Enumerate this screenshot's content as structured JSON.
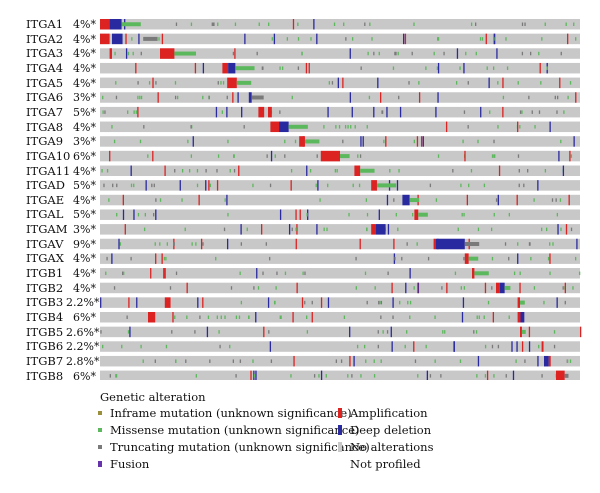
{
  "genes": [
    {
      "name": "ITGA1",
      "pct": "4%*"
    },
    {
      "name": "ITGA2",
      "pct": "4%*"
    },
    {
      "name": "ITGA3",
      "pct": "4%*"
    },
    {
      "name": "ITGA4",
      "pct": "4%*"
    },
    {
      "name": "ITGA5",
      "pct": "4%*"
    },
    {
      "name": "ITGA6",
      "pct": "3%*"
    },
    {
      "name": "ITGA7",
      "pct": "5%*"
    },
    {
      "name": "ITGA8",
      "pct": "4%*"
    },
    {
      "name": "ITGA9",
      "pct": "3%*"
    },
    {
      "name": "ITGA10",
      "pct": "6%*"
    },
    {
      "name": "ITGA11",
      "pct": "4%*"
    },
    {
      "name": "ITGAD",
      "pct": "5%*"
    },
    {
      "name": "ITGAE",
      "pct": "4%*"
    },
    {
      "name": "ITGAL",
      "pct": "5%*"
    },
    {
      "name": "ITGAM",
      "pct": "3%*"
    },
    {
      "name": "ITGAV",
      "pct": "9%*"
    },
    {
      "name": "ITGAX",
      "pct": "4%*"
    },
    {
      "name": "ITGB1",
      "pct": "4%*"
    },
    {
      "name": "ITGB2",
      "pct": "4%*"
    },
    {
      "name": "ITGB3",
      "pct": "2.2%*"
    },
    {
      "name": "ITGB4",
      "pct": "6%*"
    },
    {
      "name": "ITGB5",
      "pct": "2.6%*"
    },
    {
      "name": "ITGB6",
      "pct": "2.2%*"
    },
    {
      "name": "ITGB7",
      "pct": "2.8%*"
    },
    {
      "name": "ITGB8",
      "pct": "6%*"
    }
  ],
  "legend": {
    "title": "Genetic alteration",
    "items": [
      {
        "label": "Inframe mutation (unknown significance)",
        "color": "#9a8f3a"
      },
      {
        "label": "Missense mutation (unknown significance)",
        "color": "#5cb85c"
      },
      {
        "label": "Truncating mutation (unknown significance)",
        "color": "#7a7a7a"
      },
      {
        "label": "Fusion",
        "color": "#6633aa"
      },
      {
        "label": "Amplification",
        "color": "#dd2222"
      },
      {
        "label": "Deep deletion",
        "color": "#2a2aa0"
      },
      {
        "label": "No alterations",
        "color": "#c8c8c8"
      },
      {
        "label": "Not profiled",
        "color": "#ffffff"
      }
    ]
  },
  "colors": {
    "track": "#c8c8c8",
    "amplification": "#dd2222",
    "deep_deletion": "#2a2aa0",
    "missense": "#5cb85c",
    "truncating": "#7a7a7a",
    "inframe": "#9a8f3a"
  }
}
